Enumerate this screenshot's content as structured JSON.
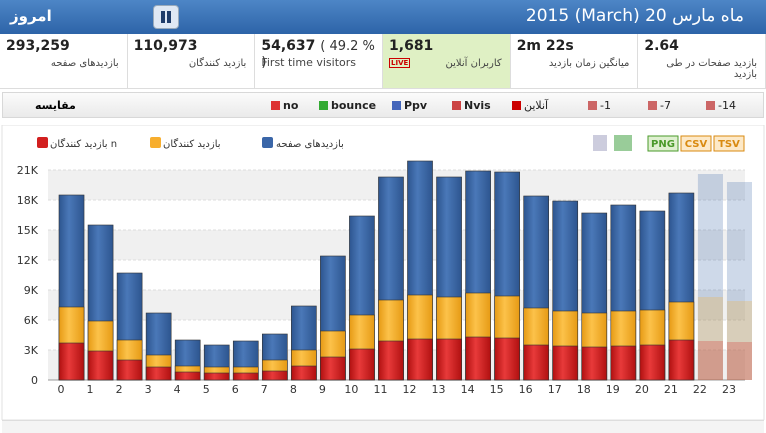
{
  "header": {
    "title": "امروز",
    "date": "ماه مارس 20 (March) 2015"
  },
  "stats": [
    {
      "value": "293,259",
      "label": "بازدیدهای صفحه"
    },
    {
      "value": "110,973",
      "label": "بازدید کنندگان"
    },
    {
      "value": "54,637",
      "extra": "( 49.2 % )",
      "label": "First time visitors"
    },
    {
      "value": "1,681",
      "label": "کاربران آنلاین",
      "badge": "LIVE"
    },
    {
      "value": "2m 22s",
      "label": "میانگین زمان بازدید"
    },
    {
      "value": "2.64",
      "label": "بازدید صفحات در طی بازدید"
    }
  ],
  "toolbar": {
    "compare": "مقایسه",
    "buttons": [
      "no",
      "bounce",
      "Ppv",
      "Nvis",
      "آنلاین",
      "-1",
      "-7",
      "-14"
    ]
  },
  "export": [
    "PNG",
    "CSV",
    "TSV"
  ],
  "chart_data": {
    "type": "bar",
    "mode": "overlap",
    "categories": [
      "0",
      "1",
      "2",
      "3",
      "4",
      "5",
      "6",
      "7",
      "8",
      "9",
      "10",
      "11",
      "12",
      "13",
      "14",
      "15",
      "16",
      "17",
      "18",
      "19",
      "20",
      "21",
      "22",
      "23"
    ],
    "series": [
      {
        "name": "بازدیدهای صفحه",
        "color": "#3a66a8",
        "values": [
          18500,
          15500,
          10700,
          6700,
          4000,
          3500,
          3900,
          4600,
          7400,
          12400,
          16400,
          20300,
          21900,
          20300,
          20900,
          20800,
          18400,
          17900,
          16700,
          17500,
          16900,
          18700,
          20600,
          19800
        ]
      },
      {
        "name": "بازدید کنندگان",
        "color": "#f7ae2e",
        "values": [
          7300,
          5900,
          4000,
          2500,
          1400,
          1300,
          1300,
          2000,
          3000,
          4900,
          6500,
          8000,
          8500,
          8300,
          8700,
          8400,
          7200,
          6900,
          6700,
          6900,
          7000,
          7800,
          8300,
          7900
        ]
      },
      {
        "name": "بازدید کنندگان n",
        "color": "#d21f1f",
        "values": [
          3700,
          2900,
          2000,
          1300,
          800,
          700,
          700,
          900,
          1400,
          2300,
          3100,
          3900,
          4100,
          4100,
          4300,
          4200,
          3500,
          3400,
          3300,
          3400,
          3500,
          4000,
          3900,
          3800
        ]
      }
    ],
    "ylim": [
      0,
      21000
    ],
    "yticks": [
      0,
      {
        "value": 3000,
        "label": "3K"
      },
      {
        "value": 6000,
        "label": "6K"
      },
      {
        "value": 9000,
        "label": "9K"
      },
      {
        "value": 12000,
        "label": "12K"
      },
      {
        "value": 15000,
        "label": "15K"
      },
      {
        "value": 18000,
        "label": "18K"
      },
      {
        "value": 21000,
        "label": "21K"
      }
    ],
    "grid": true,
    "projected": [
      22,
      23
    ]
  }
}
